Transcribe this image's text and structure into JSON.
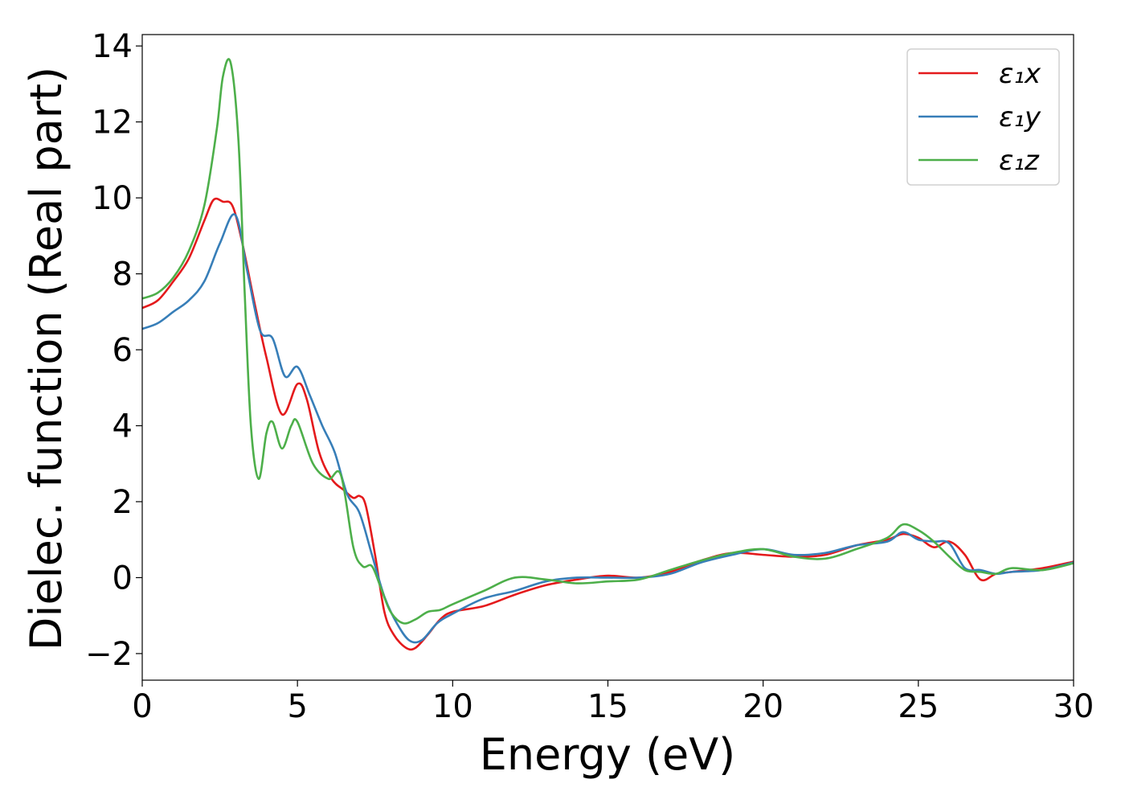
{
  "chart_data": {
    "type": "line",
    "xlabel": "Energy (eV)",
    "ylabel": "Dielec. function (Real part)",
    "xlim": [
      0,
      30
    ],
    "ylim": [
      -2.7,
      14.3
    ],
    "xticks": [
      0,
      5,
      10,
      15,
      20,
      25,
      30
    ],
    "xtick_labels": [
      "0",
      "5",
      "10",
      "15",
      "20",
      "25",
      "30"
    ],
    "yticks": [
      -2,
      0,
      2,
      4,
      6,
      8,
      10,
      12,
      14
    ],
    "ytick_labels": [
      "−2",
      "0",
      "2",
      "4",
      "6",
      "8",
      "10",
      "12",
      "14"
    ],
    "grid": false,
    "legend": "top-right",
    "series": [
      {
        "name": "ε₁x",
        "color": "#e41a1c",
        "x": [
          0,
          0.5,
          1,
          1.5,
          2,
          2.3,
          2.6,
          2.9,
          3.2,
          3.6,
          4.0,
          4.5,
          5.0,
          5.3,
          5.7,
          6.1,
          6.5,
          6.8,
          7.0,
          7.2,
          7.5,
          7.8,
          8.1,
          8.5,
          8.8,
          9.2,
          9.6,
          10,
          11,
          12,
          13,
          14,
          15,
          16,
          17,
          18,
          19,
          20,
          21,
          22,
          23,
          24,
          24.5,
          25,
          25.5,
          26,
          26.5,
          27,
          27.5,
          28,
          29,
          30
        ],
        "y": [
          7.1,
          7.3,
          7.8,
          8.4,
          9.4,
          9.95,
          9.9,
          9.8,
          8.9,
          7.3,
          5.8,
          4.3,
          5.1,
          4.7,
          3.3,
          2.6,
          2.3,
          2.1,
          2.15,
          1.9,
          0.6,
          -0.9,
          -1.5,
          -1.85,
          -1.85,
          -1.5,
          -1.1,
          -0.9,
          -0.75,
          -0.45,
          -0.2,
          -0.05,
          0.05,
          0.0,
          0.15,
          0.45,
          0.65,
          0.6,
          0.55,
          0.6,
          0.85,
          1.0,
          1.15,
          1.05,
          0.8,
          0.95,
          0.6,
          -0.05,
          0.1,
          0.15,
          0.25,
          0.42
        ]
      },
      {
        "name": "ε₁y",
        "color": "#377eb8",
        "x": [
          0,
          0.5,
          1,
          1.5,
          2,
          2.5,
          3.0,
          3.4,
          3.8,
          4.2,
          4.6,
          5.0,
          5.4,
          5.8,
          6.2,
          6.6,
          7.0,
          7.4,
          7.8,
          8.2,
          8.6,
          9.0,
          9.5,
          10,
          11,
          12,
          13,
          14,
          15,
          16,
          17,
          18,
          19,
          20,
          21,
          22,
          23,
          24,
          24.5,
          25,
          25.5,
          26,
          26.5,
          27,
          27.5,
          28,
          29,
          30
        ],
        "y": [
          6.55,
          6.7,
          7.0,
          7.3,
          7.8,
          8.8,
          9.55,
          8.0,
          6.5,
          6.3,
          5.3,
          5.55,
          4.8,
          4.0,
          3.3,
          2.2,
          1.7,
          0.6,
          -0.5,
          -1.2,
          -1.65,
          -1.65,
          -1.2,
          -0.95,
          -0.55,
          -0.35,
          -0.1,
          0.0,
          0.0,
          0.0,
          0.1,
          0.4,
          0.6,
          0.75,
          0.6,
          0.65,
          0.85,
          0.95,
          1.2,
          1.0,
          0.95,
          0.9,
          0.25,
          0.2,
          0.1,
          0.15,
          0.2,
          0.4
        ]
      },
      {
        "name": "ε₁z",
        "color": "#4daf4a",
        "x": [
          0,
          0.5,
          1,
          1.5,
          2,
          2.4,
          2.6,
          2.85,
          3.1,
          3.3,
          3.5,
          3.75,
          4.0,
          4.2,
          4.5,
          4.8,
          5.0,
          5.5,
          6.0,
          6.4,
          6.8,
          7.1,
          7.4,
          7.7,
          8.0,
          8.4,
          8.8,
          9.2,
          9.6,
          10,
          11,
          12,
          13,
          14,
          15,
          16,
          17,
          18,
          19,
          20,
          21,
          22,
          23,
          24,
          24.5,
          25,
          25.5,
          26,
          26.5,
          27,
          27.5,
          28,
          29,
          30
        ],
        "y": [
          7.35,
          7.5,
          7.9,
          8.6,
          9.8,
          11.8,
          13.2,
          13.55,
          11.5,
          7.5,
          4.0,
          2.6,
          3.8,
          4.1,
          3.4,
          4.0,
          4.1,
          3.0,
          2.6,
          2.7,
          0.8,
          0.3,
          0.3,
          -0.3,
          -0.9,
          -1.2,
          -1.1,
          -0.9,
          -0.85,
          -0.7,
          -0.35,
          0.0,
          -0.05,
          -0.15,
          -0.1,
          -0.05,
          0.2,
          0.45,
          0.65,
          0.75,
          0.55,
          0.5,
          0.75,
          1.05,
          1.4,
          1.25,
          0.95,
          0.55,
          0.2,
          0.15,
          0.1,
          0.25,
          0.2,
          0.38
        ]
      }
    ]
  }
}
